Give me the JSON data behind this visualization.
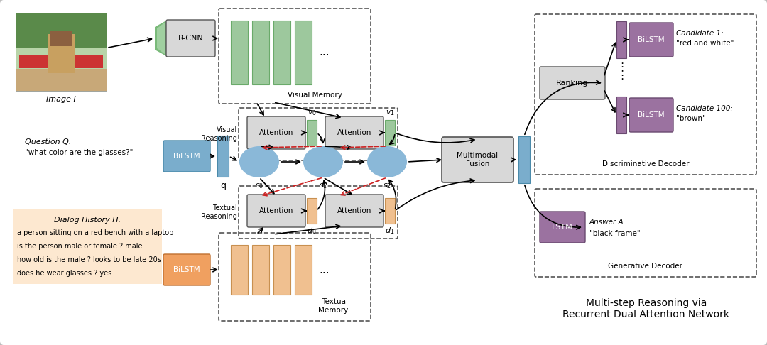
{
  "bg_color": "#ffffff",
  "fig_width": 10.8,
  "fig_height": 4.86,
  "dialog_text": [
    "a person sitting on a red bench with a laptop",
    "is the person male or female ? male",
    "how old is the male ? looks to be late 20s",
    "does he wear glasses ? yes"
  ]
}
